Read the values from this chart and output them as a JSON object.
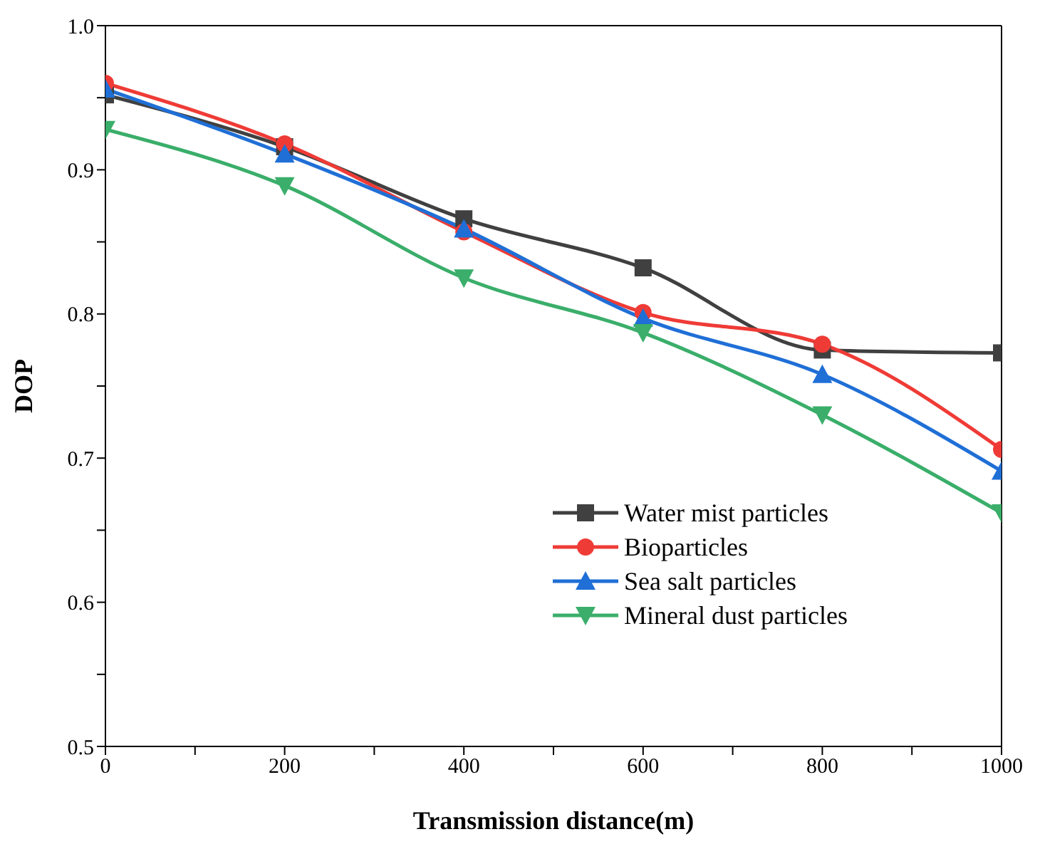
{
  "chart_data": {
    "type": "line",
    "xlabel": "Transmission distance(m)",
    "ylabel": "DOP",
    "x": [
      0,
      200,
      400,
      600,
      800,
      1000
    ],
    "series": [
      {
        "name": "Water mist particles",
        "color": "#404040",
        "marker": "square",
        "values": [
          0.952,
          0.916,
          0.866,
          0.832,
          0.775,
          0.773
        ]
      },
      {
        "name": "Bioparticles",
        "color": "#ef3b36",
        "marker": "circle",
        "values": [
          0.96,
          0.918,
          0.857,
          0.801,
          0.779,
          0.706
        ]
      },
      {
        "name": "Sea salt particles",
        "color": "#1f6fd6",
        "marker": "triangle",
        "values": [
          0.956,
          0.911,
          0.859,
          0.797,
          0.758,
          0.691
        ]
      },
      {
        "name": "Mineral dust particles",
        "color": "#3aae6a",
        "marker": "triangle_down",
        "values": [
          0.928,
          0.889,
          0.825,
          0.787,
          0.73,
          0.662
        ]
      }
    ],
    "xlim": [
      0,
      1000
    ],
    "xticks": [
      0,
      {
        "value": 100,
        "label": null
      },
      200,
      {
        "value": 300,
        "label": null
      },
      400,
      {
        "value": 500,
        "label": null
      },
      600,
      {
        "value": 700,
        "label": null
      },
      800,
      {
        "value": 900,
        "label": null
      },
      1000
    ],
    "ylim": [
      0.5,
      1.0
    ],
    "yticks": [
      0.5,
      {
        "value": 0.55,
        "label": null
      },
      0.6,
      {
        "value": 0.65,
        "label": null
      },
      0.7,
      {
        "value": 0.75,
        "label": null
      },
      0.8,
      {
        "value": 0.85,
        "label": null
      },
      0.9,
      {
        "value": 0.95,
        "label": null
      },
      {
        "value": 1.0,
        "label": "1.0"
      }
    ],
    "grid": false,
    "legend": "bottom right",
    "line_style": "solid"
  }
}
